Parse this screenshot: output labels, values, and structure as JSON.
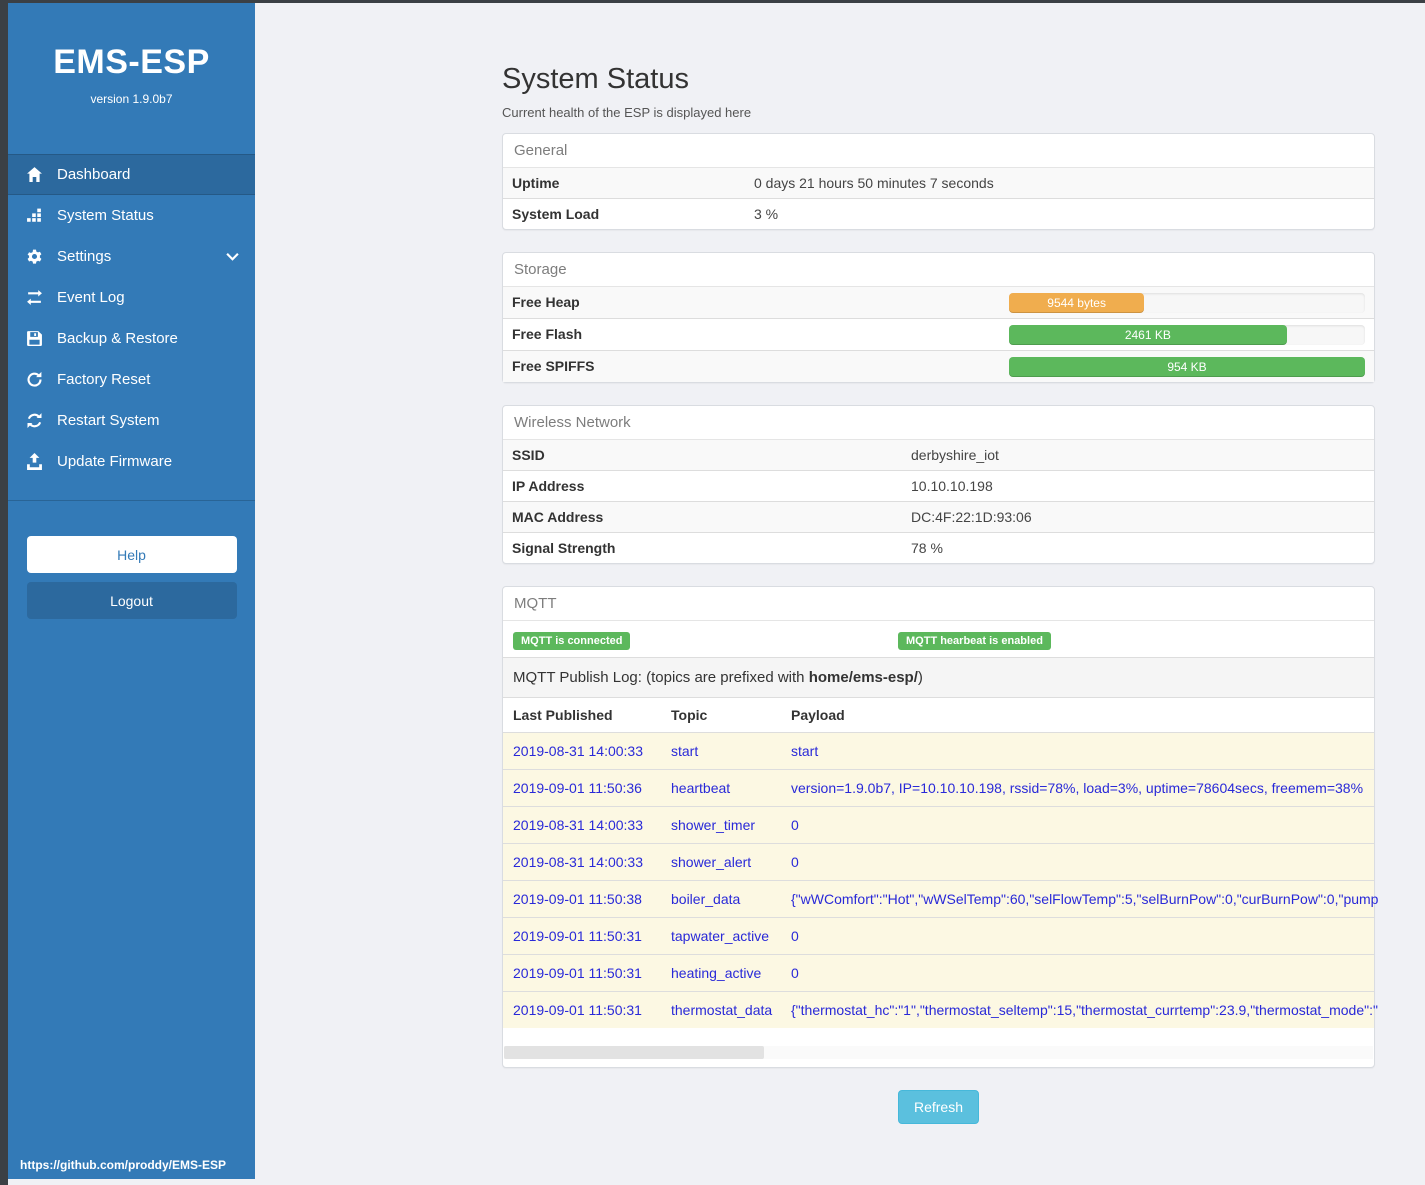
{
  "app": {
    "title": "EMS-ESP",
    "version": "version 1.9.0b7",
    "footer_link": "https://github.com/proddy/EMS-ESP"
  },
  "sidebar": {
    "items": [
      {
        "label": "Dashboard",
        "icon": "home-icon",
        "active": true
      },
      {
        "label": "System Status",
        "icon": "status-icon"
      },
      {
        "label": "Settings",
        "icon": "gear-icon",
        "chevron": true
      },
      {
        "label": "Event Log",
        "icon": "exchange-icon"
      },
      {
        "label": "Backup & Restore",
        "icon": "save-icon"
      },
      {
        "label": "Factory Reset",
        "icon": "repeat-icon"
      },
      {
        "label": "Restart System",
        "icon": "refresh-icon"
      },
      {
        "label": "Update Firmware",
        "icon": "upload-icon"
      }
    ],
    "help_label": "Help",
    "logout_label": "Logout"
  },
  "page": {
    "title": "System Status",
    "subtitle": "Current health of the ESP is displayed here"
  },
  "panels": {
    "general": {
      "title": "General",
      "rows": [
        {
          "label": "Uptime",
          "value": "0 days 21 hours 50 minutes 7 seconds"
        },
        {
          "label": "System Load",
          "value": "3 %"
        }
      ]
    },
    "storage": {
      "title": "Storage",
      "rows": [
        {
          "label": "Free Heap",
          "value": "9544 bytes",
          "percent": 38,
          "color": "#f0ad4e"
        },
        {
          "label": "Free Flash",
          "value": "2461 KB",
          "percent": 78,
          "color": "#5cb85c"
        },
        {
          "label": "Free SPIFFS",
          "value": "954 KB",
          "percent": 100,
          "color": "#5cb85c"
        }
      ]
    },
    "wireless": {
      "title": "Wireless Network",
      "rows": [
        {
          "label": "SSID",
          "value": "derbyshire_iot"
        },
        {
          "label": "IP Address",
          "value": "10.10.10.198"
        },
        {
          "label": "MAC Address",
          "value": "DC:4F:22:1D:93:06"
        },
        {
          "label": "Signal Strength",
          "value": "78 %"
        }
      ]
    },
    "mqtt": {
      "title": "MQTT",
      "badges": [
        "MQTT is connected",
        "MQTT hearbeat is enabled"
      ],
      "publish_log_prefix_text": "MQTT Publish Log: (topics are prefixed with ",
      "publish_log_prefix_bold": "home/ems-esp/",
      "publish_log_suffix": ")",
      "table": {
        "headers": [
          "Last Published",
          "Topic",
          "Payload"
        ],
        "rows": [
          [
            "2019-08-31 14:00:33",
            "start",
            "start"
          ],
          [
            "2019-09-01 11:50:36",
            "heartbeat",
            "version=1.9.0b7, IP=10.10.10.198, rssid=78%, load=3%, uptime=78604secs, freemem=38%"
          ],
          [
            "2019-08-31 14:00:33",
            "shower_timer",
            "0"
          ],
          [
            "2019-08-31 14:00:33",
            "shower_alert",
            "0"
          ],
          [
            "2019-09-01 11:50:38",
            "boiler_data",
            "{\"wWComfort\":\"Hot\",\"wWSelTemp\":60,\"selFlowTemp\":5,\"selBurnPow\":0,\"curBurnPow\":0,\"pump"
          ],
          [
            "2019-09-01 11:50:31",
            "tapwater_active",
            "0"
          ],
          [
            "2019-09-01 11:50:31",
            "heating_active",
            "0"
          ],
          [
            "2019-09-01 11:50:31",
            "thermostat_data",
            "{\"thermostat_hc\":\"1\",\"thermostat_seltemp\":15,\"thermostat_currtemp\":23.9,\"thermostat_mode\":\""
          ]
        ]
      }
    }
  },
  "actions": {
    "refresh_label": "Refresh"
  },
  "colors": {
    "sidebar": "#337ab7",
    "sidebar_active": "#2c699e",
    "success": "#5cb85c",
    "warning": "#f0ad4e",
    "info_button": "#5bc0de",
    "log_text": "#2929d8",
    "log_row_bg": "#fcf8e3"
  }
}
